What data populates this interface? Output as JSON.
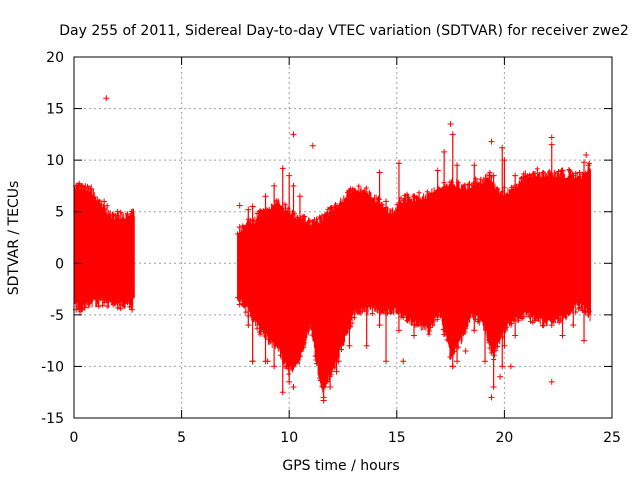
{
  "chart_data": {
    "type": "scatter",
    "title": "Day 255 of 2011, Sidereal Day-to-day VTEC variation (SDTVAR) for receiver zwe2",
    "xlabel": "GPS time / hours",
    "ylabel": "SDTVAR / TECUs",
    "xlim": [
      0,
      25
    ],
    "ylim": [
      -15,
      20
    ],
    "xticks": [
      0,
      5,
      10,
      15,
      20,
      25
    ],
    "yticks": [
      -15,
      -10,
      -5,
      0,
      5,
      10,
      15,
      20
    ],
    "grid": true,
    "series_color": "#ff0000",
    "marker": "plus",
    "segments": [
      {
        "start": 0.0,
        "end": 2.8
      },
      {
        "start": 7.6,
        "end": 24.0
      }
    ],
    "upper_envelope": [
      [
        0.0,
        6.5
      ],
      [
        0.3,
        7.0
      ],
      [
        0.8,
        6.8
      ],
      [
        1.3,
        5.2
      ],
      [
        1.8,
        4.2
      ],
      [
        2.3,
        4.2
      ],
      [
        2.8,
        4.6
      ],
      [
        7.6,
        2.8
      ],
      [
        8.2,
        3.5
      ],
      [
        8.8,
        4.5
      ],
      [
        9.5,
        5.5
      ],
      [
        10.0,
        4.5
      ],
      [
        11.0,
        3.5
      ],
      [
        11.5,
        3.8
      ],
      [
        12.0,
        4.8
      ],
      [
        12.8,
        6.5
      ],
      [
        13.5,
        6.8
      ],
      [
        14.2,
        5.5
      ],
      [
        14.8,
        4.5
      ],
      [
        15.2,
        5.8
      ],
      [
        16.0,
        6.0
      ],
      [
        16.5,
        6.3
      ],
      [
        17.0,
        7.0
      ],
      [
        17.5,
        7.5
      ],
      [
        18.2,
        7.0
      ],
      [
        18.8,
        7.5
      ],
      [
        19.3,
        8.0
      ],
      [
        19.7,
        6.5
      ],
      [
        20.3,
        6.5
      ],
      [
        21.0,
        8.2
      ],
      [
        21.5,
        8.3
      ],
      [
        22.0,
        8.3
      ],
      [
        23.0,
        8.2
      ],
      [
        23.6,
        8.0
      ],
      [
        24.0,
        9.0
      ]
    ],
    "lower_envelope": [
      [
        0.0,
        -3.0
      ],
      [
        0.3,
        -4.0
      ],
      [
        0.8,
        -3.5
      ],
      [
        1.3,
        -3.2
      ],
      [
        1.8,
        -3.6
      ],
      [
        2.3,
        -3.7
      ],
      [
        2.8,
        -3.3
      ],
      [
        7.6,
        -3.0
      ],
      [
        8.2,
        -4.5
      ],
      [
        8.8,
        -6.5
      ],
      [
        9.5,
        -8.0
      ],
      [
        10.0,
        -10.0
      ],
      [
        10.5,
        -9.0
      ],
      [
        11.0,
        -5.5
      ],
      [
        11.5,
        -12.0
      ],
      [
        12.0,
        -10.0
      ],
      [
        12.5,
        -7.5
      ],
      [
        13.0,
        -4.5
      ],
      [
        14.0,
        -4.0
      ],
      [
        15.0,
        -4.2
      ],
      [
        15.5,
        -5.0
      ],
      [
        16.0,
        -5.5
      ],
      [
        16.5,
        -6.0
      ],
      [
        17.0,
        -4.5
      ],
      [
        17.5,
        -8.5
      ],
      [
        18.0,
        -7.0
      ],
      [
        18.5,
        -4.5
      ],
      [
        19.0,
        -5.5
      ],
      [
        19.5,
        -8.5
      ],
      [
        20.0,
        -6.0
      ],
      [
        20.5,
        -5.0
      ],
      [
        21.0,
        -4.5
      ],
      [
        21.5,
        -5.2
      ],
      [
        22.0,
        -5.3
      ],
      [
        22.5,
        -5.0
      ],
      [
        23.0,
        -4.5
      ],
      [
        23.5,
        -3.5
      ],
      [
        24.0,
        -4.8
      ]
    ],
    "spikes": [
      [
        0.1,
        7.5,
        -4.5
      ],
      [
        0.5,
        7.3,
        -4.3
      ],
      [
        1.4,
        6.0,
        -3.5
      ],
      [
        2.7,
        4.8,
        -4.5
      ],
      [
        7.7,
        3.5,
        -4.0
      ],
      [
        8.1,
        5.2,
        -6.0
      ],
      [
        8.3,
        5.5,
        -9.5
      ],
      [
        8.9,
        6.5,
        -9.5
      ],
      [
        9.3,
        7.5,
        -10.0
      ],
      [
        9.7,
        9.2,
        -12.5
      ],
      [
        10.0,
        8.5,
        -11.5
      ],
      [
        10.2,
        7.5,
        -10.0
      ],
      [
        10.5,
        6.5,
        -9.0
      ],
      [
        11.1,
        4.0,
        -6.0
      ],
      [
        11.6,
        3.5,
        -13.0
      ],
      [
        11.9,
        4.5,
        -12.0
      ],
      [
        12.2,
        3.5,
        -10.5
      ],
      [
        12.8,
        7.0,
        -8.0
      ],
      [
        13.6,
        6.5,
        -8.0
      ],
      [
        14.2,
        8.8,
        -6.0
      ],
      [
        14.5,
        6.0,
        -9.5
      ],
      [
        15.1,
        9.7,
        -6.5
      ],
      [
        15.8,
        6.5,
        -7.0
      ],
      [
        16.9,
        9.0,
        -5.0
      ],
      [
        17.2,
        10.8,
        -5.5
      ],
      [
        17.6,
        12.5,
        -10.0
      ],
      [
        17.8,
        9.5,
        -9.5
      ],
      [
        18.6,
        9.5,
        -6.5
      ],
      [
        19.1,
        8.0,
        -9.5
      ],
      [
        19.5,
        8.5,
        -12.0
      ],
      [
        19.9,
        11.2,
        -10.0
      ],
      [
        20.0,
        10.0,
        -8.0
      ],
      [
        20.5,
        8.5,
        -7.0
      ],
      [
        22.2,
        11.5,
        -6.0
      ],
      [
        22.7,
        9.0,
        -7.0
      ],
      [
        23.2,
        8.5,
        -6.0
      ],
      [
        23.7,
        9.8,
        -7.5
      ],
      [
        23.9,
        9.5,
        -5.0
      ]
    ],
    "outliers": [
      [
        1.5,
        16.0
      ],
      [
        10.2,
        12.5
      ],
      [
        11.1,
        11.4
      ],
      [
        17.5,
        13.5
      ],
      [
        19.4,
        11.8
      ],
      [
        22.2,
        12.2
      ],
      [
        23.8,
        10.5
      ],
      [
        7.7,
        5.6
      ],
      [
        8.3,
        -9.5
      ],
      [
        9.0,
        -9.5
      ],
      [
        10.2,
        -12.0
      ],
      [
        11.6,
        -13.3
      ],
      [
        15.3,
        -9.5
      ],
      [
        17.6,
        -10.0
      ],
      [
        18.2,
        -8.5
      ],
      [
        19.4,
        -13.0
      ],
      [
        19.8,
        -11.0
      ],
      [
        22.2,
        -11.5
      ],
      [
        12.3,
        -9.5
      ],
      [
        20.3,
        -10.0
      ]
    ]
  }
}
